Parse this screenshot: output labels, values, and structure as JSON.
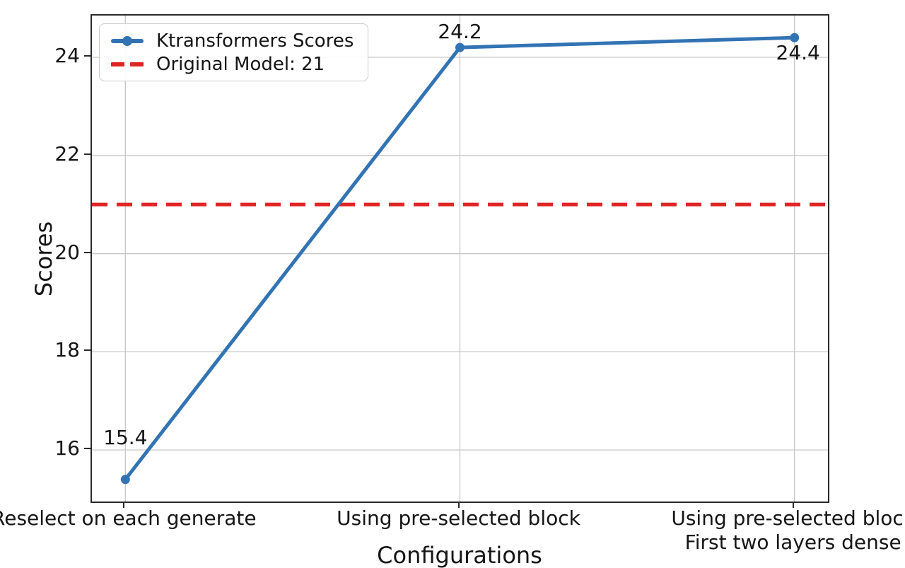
{
  "chart_data": {
    "type": "line",
    "title": "",
    "xlabel": "Configurations",
    "ylabel": "Scores",
    "categories": [
      "Reselect on each generate",
      "Using pre-selected block",
      "Using pre-selected block\nFirst two layers dense"
    ],
    "series": [
      {
        "name": "Ktransformers Scores",
        "values": [
          15.4,
          24.2,
          24.4
        ],
        "point_labels": [
          "15.4",
          "24.2",
          "24.4"
        ],
        "color": "#3273b4",
        "marker": "circle"
      }
    ],
    "reference_line": {
      "label": "Original Model: 21",
      "value": 21,
      "color": "#e02424",
      "style": "dashed"
    },
    "yticks": [
      "16",
      "18",
      "20",
      "22",
      "24"
    ],
    "ytick_values": [
      16,
      18,
      20,
      22,
      24
    ],
    "ylim": [
      14.95,
      24.85
    ],
    "grid": true,
    "grid_color": "#c6c6c6",
    "axis_color": "#2a2a2a",
    "legend": {
      "position": "upper-left",
      "entries": [
        {
          "label": "Ktransformers Scores",
          "type": "line-marker",
          "color": "#3273b4"
        },
        {
          "label": "Original Model: 21",
          "type": "dashed",
          "color": "#e02424"
        }
      ]
    }
  }
}
